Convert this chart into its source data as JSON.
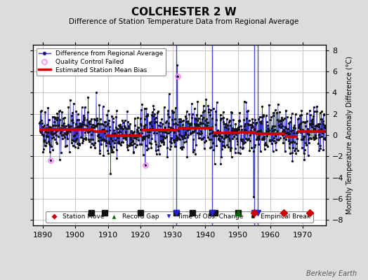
{
  "title": "COLCHESTER 2 W",
  "subtitle": "Difference of Station Temperature Data from Regional Average",
  "ylabel": "Monthly Temperature Anomaly Difference (°C)",
  "xlim": [
    1887,
    1977
  ],
  "ylim": [
    -8.5,
    8.5
  ],
  "yticks": [
    -8,
    -6,
    -4,
    -2,
    0,
    2,
    4,
    6,
    8
  ],
  "xticks": [
    1890,
    1900,
    1910,
    1920,
    1930,
    1940,
    1950,
    1960,
    1970
  ],
  "bg_color": "#dcdcdc",
  "plot_bg_color": "#ffffff",
  "grid_color": "#bbbbbb",
  "line_color": "#3333cc",
  "dot_color": "#111111",
  "qc_color": "#ff88ff",
  "bias_color": "#cc0000",
  "watermark": "Berkeley Earth",
  "seed": 42,
  "data_start": 1889.0,
  "data_end": 1976.92,
  "n_points": 1056,
  "bias_segments": [
    {
      "start": 1889.0,
      "end": 1905.5,
      "value": 0.55
    },
    {
      "start": 1905.5,
      "end": 1909.5,
      "value": 0.3
    },
    {
      "start": 1909.5,
      "end": 1920.5,
      "value": -0.05
    },
    {
      "start": 1920.5,
      "end": 1931.5,
      "value": 0.45
    },
    {
      "start": 1931.5,
      "end": 1942.5,
      "value": 0.65
    },
    {
      "start": 1942.5,
      "end": 1950.5,
      "value": 0.2
    },
    {
      "start": 1950.5,
      "end": 1955.5,
      "value": 0.25
    },
    {
      "start": 1955.5,
      "end": 1964.5,
      "value": 0.1
    },
    {
      "start": 1964.5,
      "end": 1968.5,
      "value": -0.1
    },
    {
      "start": 1968.5,
      "end": 1977.0,
      "value": 0.3
    }
  ],
  "empirical_breaks": [
    1905,
    1909,
    1920,
    1931,
    1936,
    1942,
    1943,
    1950
  ],
  "time_of_obs_changes": [
    1931,
    1942,
    1955,
    1956
  ],
  "station_moves": [
    1955,
    1964,
    1972
  ],
  "record_gaps": [
    1950
  ],
  "qc_failed_times": [
    1892.3,
    1921.5,
    1931.4
  ],
  "qc_failed_values": [
    -2.4,
    -2.85,
    5.55
  ],
  "marker_y": -7.3,
  "spike_up_time": 1931.3,
  "spike_up_val": 6.6,
  "spike_down_time": 1954.8,
  "spike_down_val": -5.8
}
